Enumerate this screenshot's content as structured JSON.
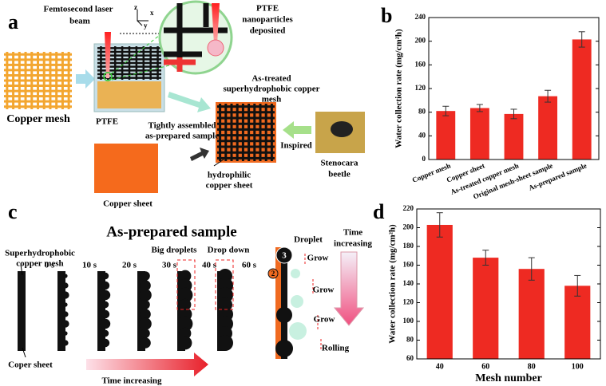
{
  "chart_data": [
    {
      "type": "bar",
      "panel": "b",
      "ylabel": "Water collection rate (mg/cm²h)",
      "categories": [
        "Copper mesh",
        "Copper sheet",
        "As-treated copper mesh",
        "Original mesh-sheet sample",
        "As-prepared sample"
      ],
      "values": [
        82,
        87,
        77,
        107,
        203
      ],
      "errors": [
        8,
        6,
        8,
        10,
        13
      ],
      "color": "#ee2a22",
      "ylim": [
        0,
        240
      ],
      "yticks": [
        0,
        40,
        80,
        120,
        160,
        200,
        240
      ],
      "rotate_labels": true
    },
    {
      "type": "bar",
      "panel": "d",
      "ylabel": "Water collection rate (mg/cm²h)",
      "xlabel": "Mesh number",
      "categories": [
        "40",
        "60",
        "80",
        "100"
      ],
      "values": [
        203,
        168,
        156,
        138
      ],
      "errors": [
        13,
        8,
        12,
        11
      ],
      "color": "#ee2a22",
      "ylim": [
        60,
        220
      ],
      "yticks": [
        60,
        80,
        100,
        120,
        140,
        160,
        180,
        200,
        220
      ],
      "rotate_labels": false
    }
  ],
  "figure": {
    "a": {
      "panel": "a",
      "laser": [
        "Femtosecond laser",
        "beam"
      ],
      "copper_mesh": "Copper mesh",
      "ptfe": "PTFE",
      "nanoparticles": [
        "PTFE",
        "nanoparticles",
        "deposited"
      ],
      "as_treated": [
        "As-treated",
        "superhydrophobic copper",
        "mesh"
      ],
      "assembled": [
        "Tightly assembled",
        "as-prepared sample"
      ],
      "inspired": "Inspired",
      "beetle": [
        "Stenocara",
        "beetle"
      ],
      "hydrophilic": [
        "hydrophilic",
        "copper sheet"
      ],
      "copper_sheet": "Copper sheet",
      "axes": [
        "z",
        "x",
        "y"
      ]
    },
    "c": {
      "panel": "c",
      "title": "As-prepared sample",
      "mesh": [
        "Superhydrophobic",
        "copper mesh"
      ],
      "times": [
        "0 s",
        "10 s",
        "20 s",
        "30 s",
        "40 s",
        "60 s"
      ],
      "big": "Big droplets",
      "drop": "Drop down",
      "coper": "Coper sheet",
      "time1": "Time increasing",
      "time2": [
        "Time",
        "increasing"
      ],
      "droplet": "Droplet",
      "grow": [
        "Grow",
        "Grow",
        "Grow"
      ],
      "rolling": "Rolling",
      "steps": [
        "3",
        "2"
      ]
    }
  }
}
